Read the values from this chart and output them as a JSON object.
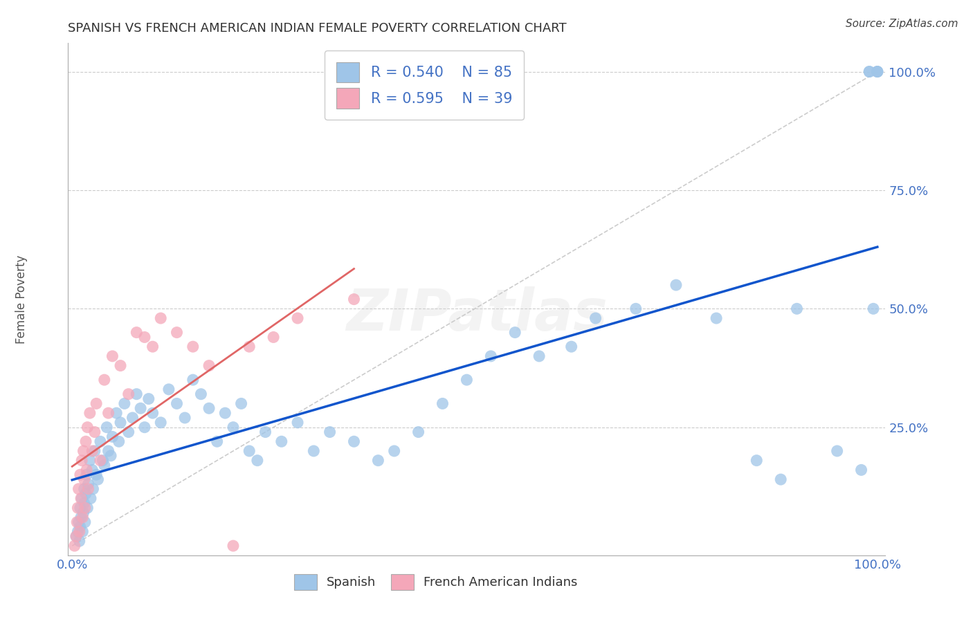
{
  "title": "SPANISH VS FRENCH AMERICAN INDIAN FEMALE POVERTY CORRELATION CHART",
  "source": "Source: ZipAtlas.com",
  "ylabel": "Female Poverty",
  "R_spanish": 0.54,
  "N_spanish": 85,
  "R_french": 0.595,
  "N_french": 39,
  "blue_scatter_color": "#9fc5e8",
  "pink_scatter_color": "#f4a7b9",
  "blue_line_color": "#1155cc",
  "pink_line_color": "#e06666",
  "gray_line_color": "#cccccc",
  "text_blue_color": "#4472c4",
  "watermark": "ZIPatlas",
  "y_ticks": [
    0.25,
    0.5,
    0.75,
    1.0
  ],
  "y_tick_labels": [
    "25.0%",
    "50.0%",
    "75.0%",
    "100.0%"
  ],
  "spanish_x": [
    0.005,
    0.007,
    0.008,
    0.009,
    0.01,
    0.01,
    0.011,
    0.012,
    0.013,
    0.014,
    0.015,
    0.015,
    0.016,
    0.017,
    0.018,
    0.019,
    0.02,
    0.022,
    0.023,
    0.025,
    0.026,
    0.028,
    0.03,
    0.032,
    0.035,
    0.038,
    0.04,
    0.043,
    0.045,
    0.048,
    0.05,
    0.055,
    0.058,
    0.06,
    0.065,
    0.07,
    0.075,
    0.08,
    0.085,
    0.09,
    0.095,
    0.1,
    0.11,
    0.12,
    0.13,
    0.14,
    0.15,
    0.16,
    0.17,
    0.18,
    0.19,
    0.2,
    0.21,
    0.22,
    0.23,
    0.24,
    0.26,
    0.28,
    0.3,
    0.32,
    0.35,
    0.38,
    0.4,
    0.43,
    0.46,
    0.49,
    0.52,
    0.55,
    0.58,
    0.62,
    0.65,
    0.7,
    0.75,
    0.8,
    0.85,
    0.88,
    0.9,
    0.95,
    0.98,
    0.99,
    0.99,
    0.995,
    1.0,
    1.0,
    1.0
  ],
  "spanish_y": [
    0.02,
    0.03,
    0.05,
    0.01,
    0.04,
    0.08,
    0.06,
    0.1,
    0.03,
    0.07,
    0.09,
    0.12,
    0.05,
    0.11,
    0.15,
    0.08,
    0.13,
    0.18,
    0.1,
    0.16,
    0.12,
    0.2,
    0.15,
    0.14,
    0.22,
    0.18,
    0.17,
    0.25,
    0.2,
    0.19,
    0.23,
    0.28,
    0.22,
    0.26,
    0.3,
    0.24,
    0.27,
    0.32,
    0.29,
    0.25,
    0.31,
    0.28,
    0.26,
    0.33,
    0.3,
    0.27,
    0.35,
    0.32,
    0.29,
    0.22,
    0.28,
    0.25,
    0.3,
    0.2,
    0.18,
    0.24,
    0.22,
    0.26,
    0.2,
    0.24,
    0.22,
    0.18,
    0.2,
    0.24,
    0.3,
    0.35,
    0.4,
    0.45,
    0.4,
    0.42,
    0.48,
    0.5,
    0.55,
    0.48,
    0.18,
    0.14,
    0.5,
    0.2,
    0.16,
    1.0,
    1.0,
    0.5,
    1.0,
    1.0,
    1.0
  ],
  "french_x": [
    0.003,
    0.005,
    0.006,
    0.007,
    0.008,
    0.009,
    0.01,
    0.011,
    0.012,
    0.013,
    0.014,
    0.015,
    0.016,
    0.017,
    0.018,
    0.019,
    0.02,
    0.022,
    0.025,
    0.028,
    0.03,
    0.035,
    0.04,
    0.045,
    0.05,
    0.06,
    0.07,
    0.08,
    0.09,
    0.1,
    0.11,
    0.13,
    0.15,
    0.17,
    0.2,
    0.22,
    0.25,
    0.28,
    0.35
  ],
  "french_y": [
    0.0,
    0.02,
    0.05,
    0.08,
    0.12,
    0.03,
    0.15,
    0.1,
    0.18,
    0.06,
    0.2,
    0.14,
    0.08,
    0.22,
    0.16,
    0.25,
    0.12,
    0.28,
    0.2,
    0.24,
    0.3,
    0.18,
    0.35,
    0.28,
    0.4,
    0.38,
    0.32,
    0.45,
    0.44,
    0.42,
    0.48,
    0.45,
    0.42,
    0.38,
    0.0,
    0.42,
    0.44,
    0.48,
    0.52
  ]
}
